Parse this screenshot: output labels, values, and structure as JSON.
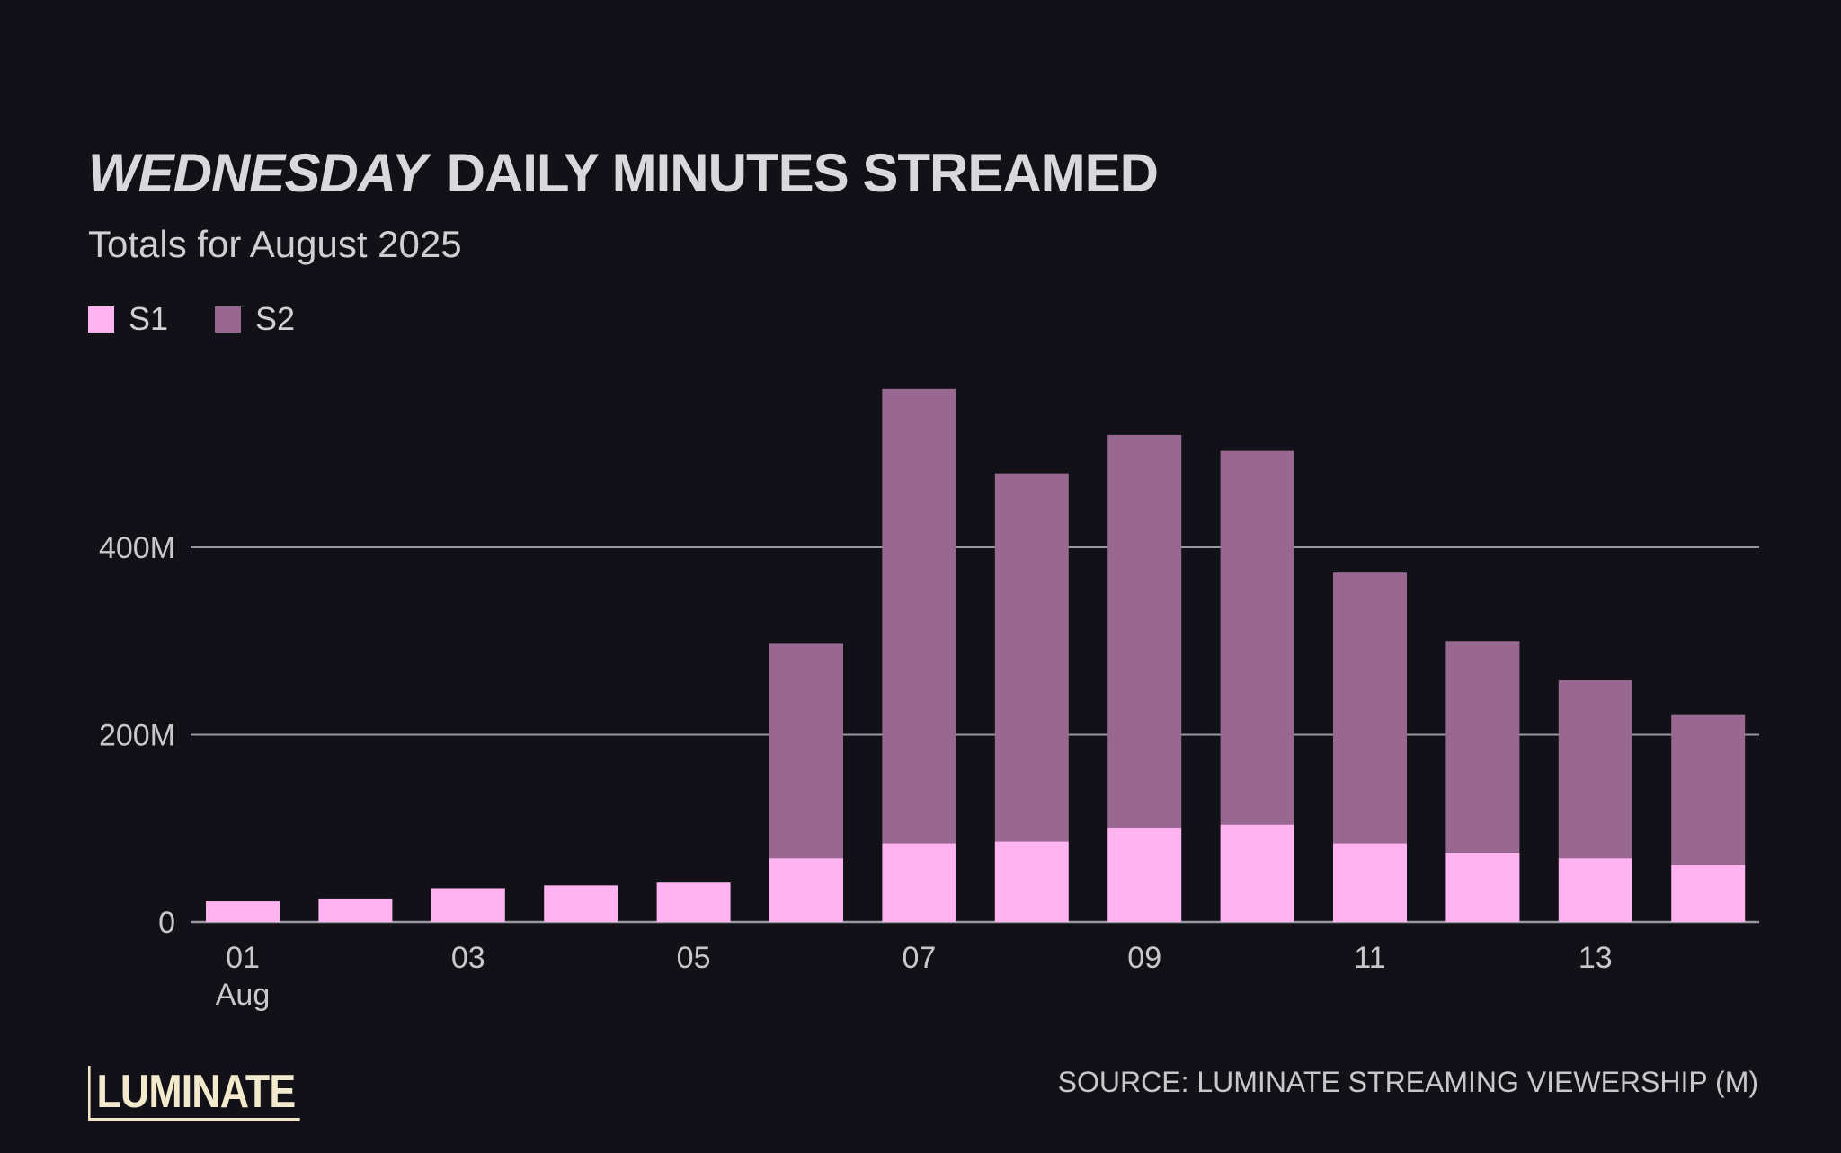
{
  "title": {
    "show": "WEDNESDAY",
    "rest": "DAILY MINUTES STREAMED"
  },
  "subtitle": "Totals for August 2025",
  "legend": [
    {
      "label": "S1",
      "color": "#ffb3f0"
    },
    {
      "label": "S2",
      "color": "#986890"
    }
  ],
  "source": "SOURCE: LUMINATE STREAMING VIEWERSHIP (M)",
  "logo": "LUMINATE",
  "chart_data": {
    "type": "bar",
    "stacked": true,
    "categories": [
      "01",
      "02",
      "03",
      "04",
      "05",
      "06",
      "07",
      "08",
      "09",
      "10",
      "11",
      "12",
      "13",
      "14"
    ],
    "x_tick_labels": [
      "01",
      "03",
      "05",
      "07",
      "09",
      "11",
      "13"
    ],
    "x_tick_sublabel": {
      "category": "01",
      "text": "Aug"
    },
    "y_ticks": [
      0,
      200,
      400
    ],
    "y_tick_labels": [
      "0",
      "200M",
      "400M"
    ],
    "ylim": [
      0,
      600
    ],
    "grid": true,
    "series": [
      {
        "name": "S1",
        "color": "#ffb3f0",
        "values": [
          22,
          25,
          36,
          39,
          42,
          68,
          84,
          86,
          101,
          104,
          84,
          74,
          68,
          61
        ]
      },
      {
        "name": "S2",
        "color": "#986890",
        "values": [
          0,
          0,
          0,
          0,
          0,
          229,
          485,
          393,
          419,
          399,
          289,
          226,
          190,
          160
        ]
      }
    ]
  }
}
